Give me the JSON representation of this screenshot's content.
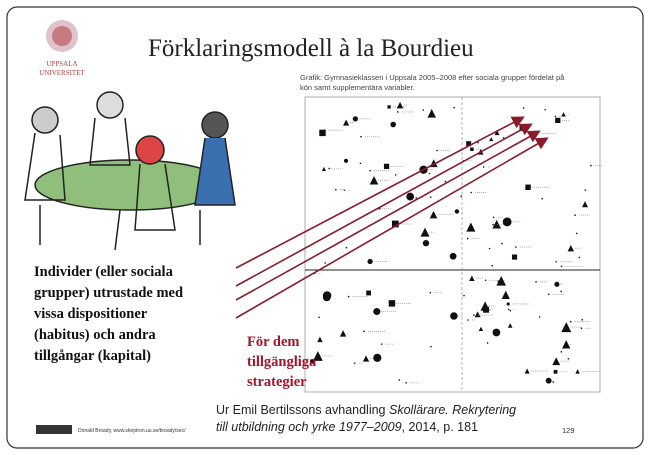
{
  "header": {
    "logo_lines": [
      "UPPSALA",
      "UNIVERSITET"
    ],
    "title": "Förklaringsmodell à la Bourdieu"
  },
  "figure": {
    "caption_lines": [
      "Grafik: Gymnasieklassen i Uppsala 2005–2008 efter sociala grupper fördelat på",
      "kön samt supplementära variabler."
    ]
  },
  "body": {
    "description_lines": [
      "Individer (eller sociala",
      "grupper) utrustade med",
      "vissa dispositioner",
      "(habitus) och andra",
      "tillgångar (kapital)"
    ],
    "strategies_lines": [
      "För dem",
      "tillgängliga",
      "strategier"
    ]
  },
  "citation": {
    "prefix": "Ur Emil Bertilssons avhandling ",
    "title_line1": "Skollärare. Rekrytering",
    "title_line2": "till utbildning och yrke 1977–2009",
    "suffix": ", 2014, p. 181"
  },
  "footer": {
    "credit": "Donald Broady, www.skeptron.uu.se/broady/sec/",
    "page": "129"
  }
}
